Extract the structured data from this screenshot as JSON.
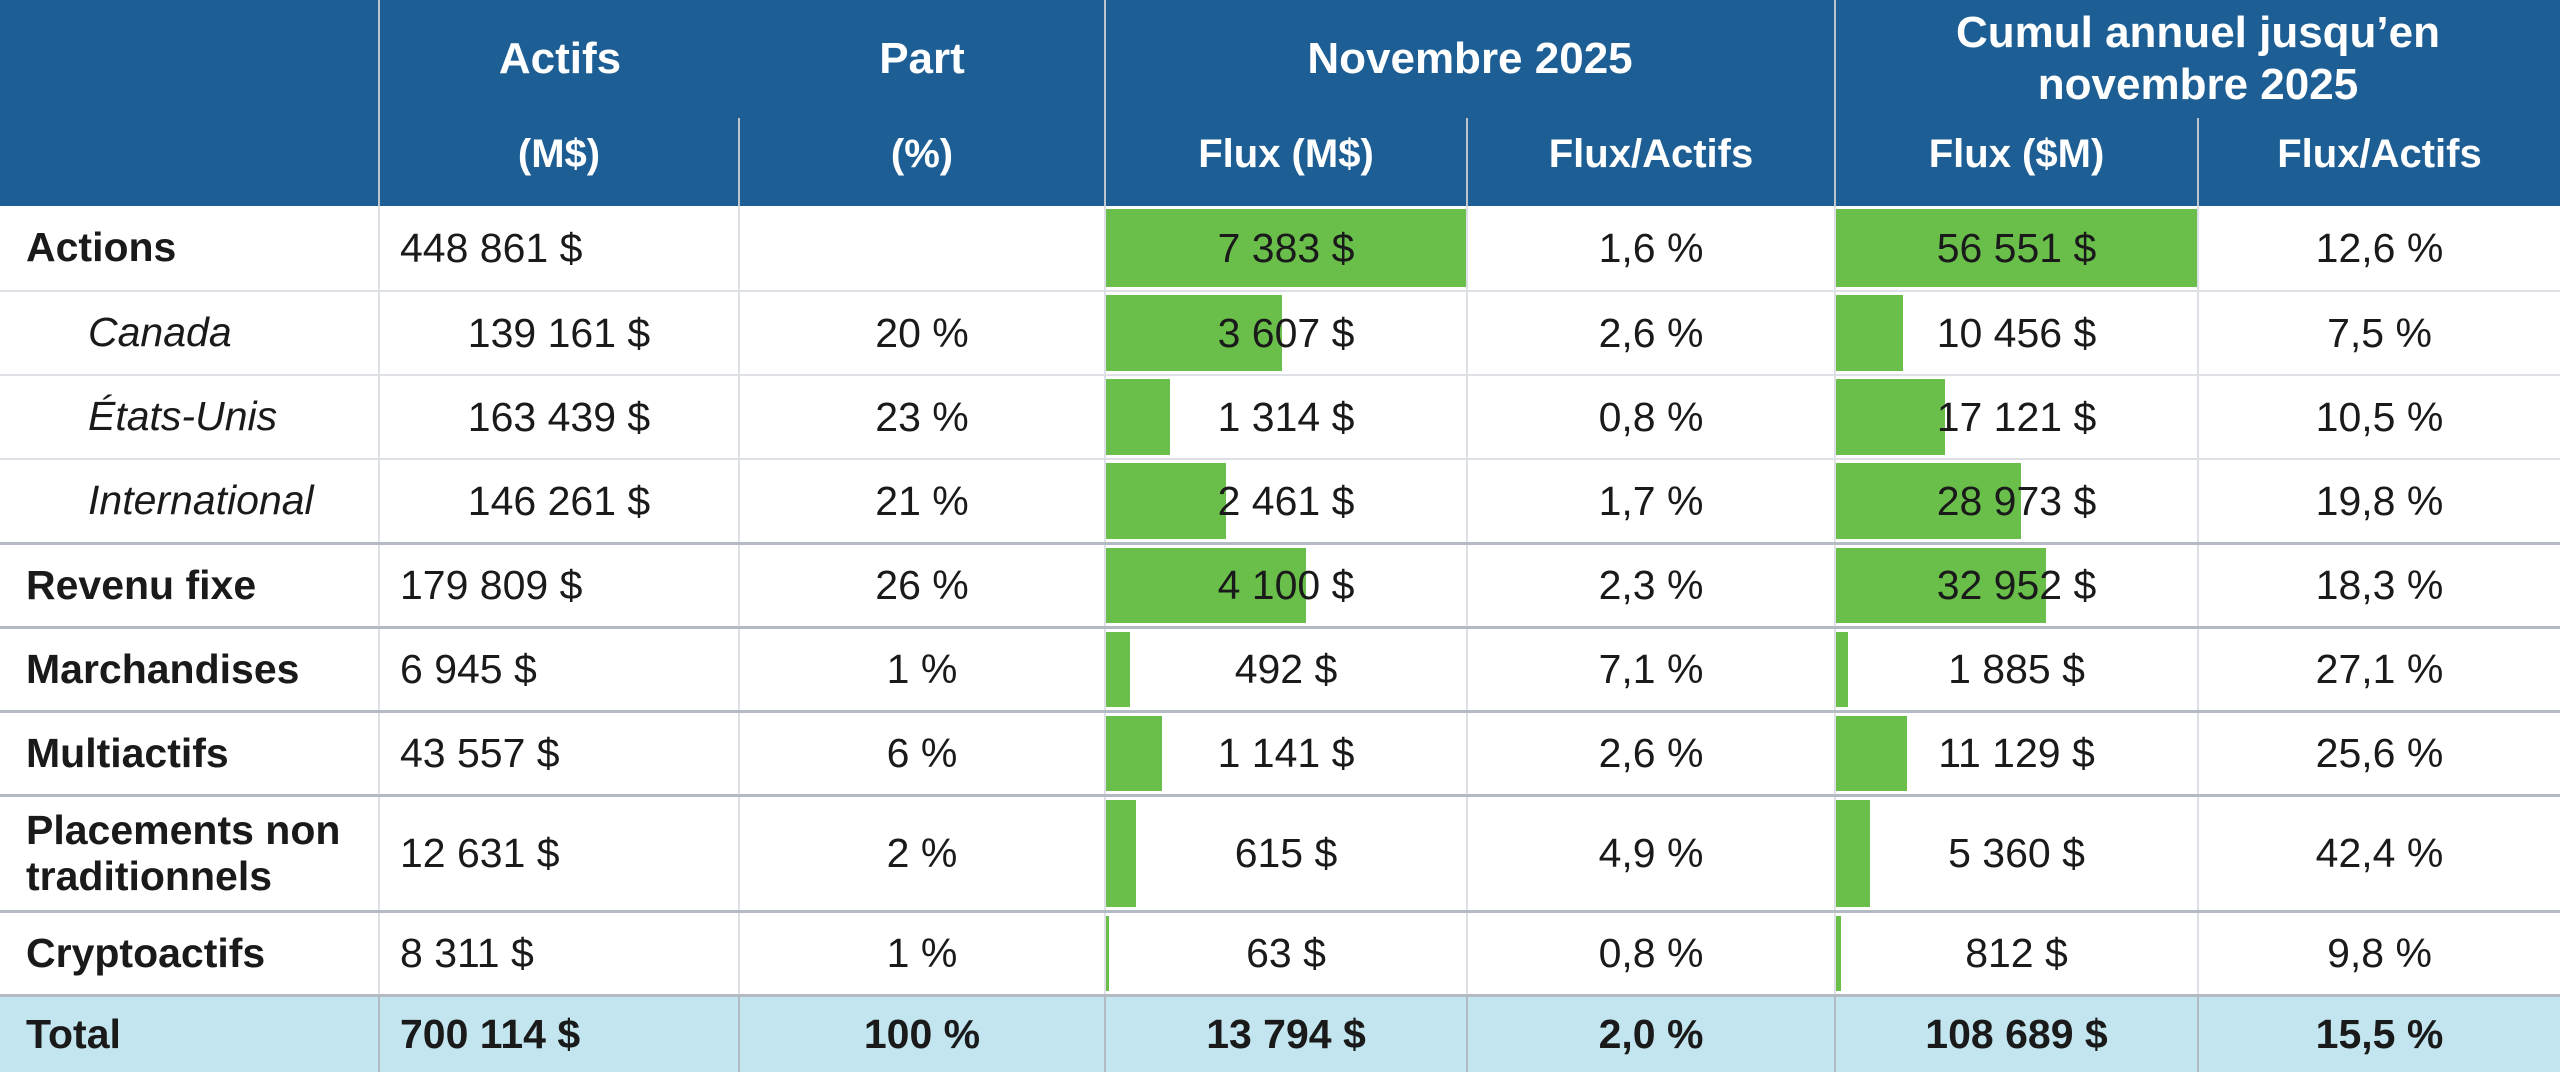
{
  "colors": {
    "header_bg": "#1d5f95",
    "bar_green": "#6abf4b",
    "total_bg": "#c2e5f0",
    "line_light": "#dde0e5",
    "line_dark": "#b4bac4",
    "header_line": "#bfc5cc",
    "text": "#1a1a1a"
  },
  "table": {
    "header": {
      "col_actifs": "Actifs",
      "col_actifs_sub": "(M$)",
      "col_part": "Part",
      "col_part_sub": "(%)",
      "group_month": "Novembre 2025",
      "group_ytd": "Cumul annuel jusqu’en novembre 2025",
      "month_flux": "Flux (M$)",
      "month_ratio": "Flux/Actifs",
      "ytd_flux": "Flux ($M)",
      "ytd_ratio": "Flux/Actifs"
    },
    "bar_max_month": 7383,
    "bar_max_ytd": 56551,
    "rows": [
      {
        "label": "Actions",
        "kind": "group",
        "group_start": false,
        "tall": false,
        "actifs": "448 861 $",
        "part": "",
        "flux_m": "7 383 $",
        "flux_m_val": 7383,
        "ratio_m": "1,6 %",
        "flux_y": "56 551 $",
        "flux_y_val": 56551,
        "ratio_y": "12,6 %"
      },
      {
        "label": "Canada",
        "kind": "sub",
        "group_start": false,
        "tall": false,
        "actifs": "139 161 $",
        "part": "20 %",
        "flux_m": "3 607 $",
        "flux_m_val": 3607,
        "ratio_m": "2,6 %",
        "flux_y": "10 456 $",
        "flux_y_val": 10456,
        "ratio_y": "7,5 %"
      },
      {
        "label": "États-Unis",
        "kind": "sub",
        "group_start": false,
        "tall": false,
        "actifs": "163 439 $",
        "part": "23 %",
        "flux_m": "1 314 $",
        "flux_m_val": 1314,
        "ratio_m": "0,8 %",
        "flux_y": "17 121 $",
        "flux_y_val": 17121,
        "ratio_y": "10,5 %"
      },
      {
        "label": "International",
        "kind": "sub",
        "group_start": false,
        "tall": false,
        "actifs": "146 261 $",
        "part": "21 %",
        "flux_m": "2 461 $",
        "flux_m_val": 2461,
        "ratio_m": "1,7 %",
        "flux_y": "28 973 $",
        "flux_y_val": 28973,
        "ratio_y": "19,8 %"
      },
      {
        "label": "Revenu fixe",
        "kind": "group",
        "group_start": true,
        "tall": false,
        "actifs": "179 809 $",
        "part": "26 %",
        "flux_m": "4 100 $",
        "flux_m_val": 4100,
        "ratio_m": "2,3 %",
        "flux_y": "32 952 $",
        "flux_y_val": 32952,
        "ratio_y": "18,3 %"
      },
      {
        "label": "Marchandises",
        "kind": "group",
        "group_start": true,
        "tall": false,
        "actifs": "6 945 $",
        "part": "1 %",
        "flux_m": "492 $",
        "flux_m_val": 492,
        "ratio_m": "7,1 %",
        "flux_y": "1 885 $",
        "flux_y_val": 1885,
        "ratio_y": "27,1 %"
      },
      {
        "label": "Multiactifs",
        "kind": "group",
        "group_start": true,
        "tall": false,
        "actifs": "43 557 $",
        "part": "6 %",
        "flux_m": "1 141 $",
        "flux_m_val": 1141,
        "ratio_m": "2,6 %",
        "flux_y": "11 129 $",
        "flux_y_val": 11129,
        "ratio_y": "25,6 %"
      },
      {
        "label": "Placements non traditionnels",
        "kind": "group",
        "group_start": true,
        "tall": true,
        "actifs": "12 631 $",
        "part": "2 %",
        "flux_m": "615 $",
        "flux_m_val": 615,
        "ratio_m": "4,9 %",
        "flux_y": "5 360 $",
        "flux_y_val": 5360,
        "ratio_y": "42,4 %"
      },
      {
        "label": "Cryptoactifs",
        "kind": "group",
        "group_start": true,
        "tall": false,
        "actifs": "8 311 $",
        "part": "1 %",
        "flux_m": "63 $",
        "flux_m_val": 63,
        "ratio_m": "0,8 %",
        "flux_y": "812 $",
        "flux_y_val": 812,
        "ratio_y": "9,8 %"
      }
    ],
    "total": {
      "label": "Total",
      "actifs": "700 114 $",
      "part": "100 %",
      "flux_m": "13 794 $",
      "ratio_m": "2,0 %",
      "flux_y": "108 689 $",
      "ratio_y": "15,5 %"
    }
  },
  "chart_data": {
    "type": "table",
    "title": "",
    "columns": [
      "",
      "Actifs (M$)",
      "Part (%)",
      "Novembre 2025 – Flux (M$)",
      "Novembre 2025 – Flux/Actifs",
      "Cumul annuel jusqu’en novembre 2025 – Flux ($M)",
      "Cumul annuel jusqu’en novembre 2025 – Flux/Actifs"
    ],
    "rows": [
      {
        "label": "Actions",
        "indent": false,
        "actifs_msd": 448861,
        "part_pct": null,
        "flux_nov_msd": 7383,
        "flux_actifs_nov_pct": 1.6,
        "flux_ytd_msd": 56551,
        "flux_actifs_ytd_pct": 12.6
      },
      {
        "label": "Canada",
        "indent": true,
        "actifs_msd": 139161,
        "part_pct": 20,
        "flux_nov_msd": 3607,
        "flux_actifs_nov_pct": 2.6,
        "flux_ytd_msd": 10456,
        "flux_actifs_ytd_pct": 7.5
      },
      {
        "label": "États-Unis",
        "indent": true,
        "actifs_msd": 163439,
        "part_pct": 23,
        "flux_nov_msd": 1314,
        "flux_actifs_nov_pct": 0.8,
        "flux_ytd_msd": 17121,
        "flux_actifs_ytd_pct": 10.5
      },
      {
        "label": "International",
        "indent": true,
        "actifs_msd": 146261,
        "part_pct": 21,
        "flux_nov_msd": 2461,
        "flux_actifs_nov_pct": 1.7,
        "flux_ytd_msd": 28973,
        "flux_actifs_ytd_pct": 19.8
      },
      {
        "label": "Revenu fixe",
        "indent": false,
        "actifs_msd": 179809,
        "part_pct": 26,
        "flux_nov_msd": 4100,
        "flux_actifs_nov_pct": 2.3,
        "flux_ytd_msd": 32952,
        "flux_actifs_ytd_pct": 18.3
      },
      {
        "label": "Marchandises",
        "indent": false,
        "actifs_msd": 6945,
        "part_pct": 1,
        "flux_nov_msd": 492,
        "flux_actifs_nov_pct": 7.1,
        "flux_ytd_msd": 1885,
        "flux_actifs_ytd_pct": 27.1
      },
      {
        "label": "Multiactifs",
        "indent": false,
        "actifs_msd": 43557,
        "part_pct": 6,
        "flux_nov_msd": 1141,
        "flux_actifs_nov_pct": 2.6,
        "flux_ytd_msd": 11129,
        "flux_actifs_ytd_pct": 25.6
      },
      {
        "label": "Placements non traditionnels",
        "indent": false,
        "actifs_msd": 12631,
        "part_pct": 2,
        "flux_nov_msd": 615,
        "flux_actifs_nov_pct": 4.9,
        "flux_ytd_msd": 5360,
        "flux_actifs_ytd_pct": 42.4
      },
      {
        "label": "Cryptoactifs",
        "indent": false,
        "actifs_msd": 8311,
        "part_pct": 1,
        "flux_nov_msd": 63,
        "flux_actifs_nov_pct": 0.8,
        "flux_ytd_msd": 812,
        "flux_actifs_ytd_pct": 9.8
      },
      {
        "label": "Total",
        "indent": false,
        "actifs_msd": 700114,
        "part_pct": 100,
        "flux_nov_msd": 13794,
        "flux_actifs_nov_pct": 2.0,
        "flux_ytd_msd": 108689,
        "flux_actifs_ytd_pct": 15.5
      }
    ],
    "data_bars": {
      "columns": [
        "flux_nov_msd",
        "flux_ytd_msd"
      ],
      "max_nov": 7383,
      "max_ytd": 56551,
      "color": "#6abf4b"
    },
    "layout": {
      "header_bg": "#1d5f95",
      "total_row_bg": "#c2e5f0",
      "grid_on": true
    }
  }
}
